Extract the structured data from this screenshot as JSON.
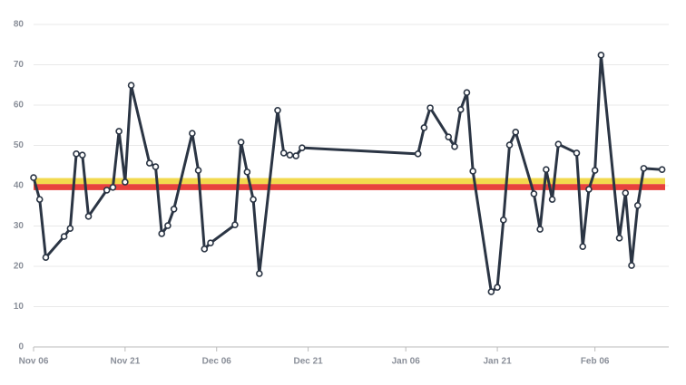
{
  "chart_data": {
    "type": "line",
    "x": [
      0,
      1,
      2,
      5,
      6,
      7,
      8,
      9,
      12,
      13,
      14,
      15,
      16,
      19,
      20,
      21,
      22,
      23,
      26,
      27,
      28,
      29,
      33,
      34,
      35,
      36,
      37,
      40,
      41,
      42,
      43,
      44,
      63,
      64,
      65,
      68,
      69,
      70,
      71,
      72,
      75,
      76,
      77,
      78,
      79,
      82,
      83,
      84,
      85,
      86,
      89,
      90,
      91,
      92,
      93,
      96,
      97,
      98,
      99,
      100,
      103
    ],
    "series": [
      {
        "color": "#2b3544",
        "values": [
          42,
          36.6,
          22.2,
          27.4,
          29.4,
          47.9,
          47.6,
          32.4,
          38.9,
          39.6,
          53.5,
          40.9,
          64.9,
          45.6,
          44.7,
          28.1,
          30.1,
          34.2,
          53,
          43.8,
          24.3,
          25.8,
          30.3,
          50.8,
          43.4,
          36.6,
          18.2,
          58.7,
          48.1,
          47.6,
          47.4,
          49.4,
          47.9,
          54.4,
          59.3,
          52.1,
          49.7,
          58.9,
          63.1,
          43.6,
          13.7,
          14.8,
          31.5,
          50.1,
          53.3,
          38,
          29.2,
          44,
          36.6,
          50.3,
          48.1,
          24.9,
          39.1,
          43.8,
          72.4,
          27,
          38.2,
          20.2,
          35.1,
          44.3,
          44
        ]
      }
    ],
    "bands": [
      {
        "from": 40.4,
        "to": 41.9,
        "color": "#f2d94e"
      },
      {
        "from": 38.9,
        "to": 40.4,
        "color": "#e8413c"
      }
    ],
    "xlim": [
      0,
      103.5
    ],
    "xticks": [
      {
        "value": 0,
        "label": "Nov 06"
      },
      {
        "value": 15,
        "label": "Nov 21"
      },
      {
        "value": 30,
        "label": "Dec 06"
      },
      {
        "value": 45,
        "label": "Dec 21"
      },
      {
        "value": 61,
        "label": "Jan 06"
      },
      {
        "value": 76,
        "label": "Jan 21"
      },
      {
        "value": 92,
        "label": "Feb 06"
      }
    ],
    "ylim": [
      0,
      80
    ],
    "yticks": [
      0,
      10,
      20,
      30,
      40,
      50,
      60,
      70,
      80
    ],
    "grid": true
  }
}
